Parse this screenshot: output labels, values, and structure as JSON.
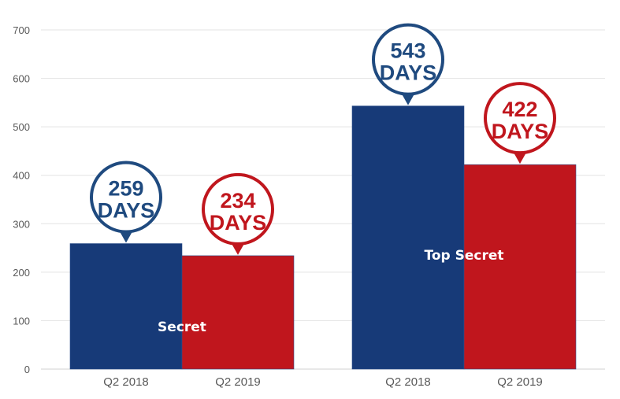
{
  "chart_data": {
    "type": "bar",
    "ylim": [
      0,
      700
    ],
    "yticks": [
      0,
      100,
      200,
      300,
      400,
      500,
      600,
      700
    ],
    "grid": true,
    "groups": [
      {
        "name": "Secret",
        "bars": [
          {
            "category": "Q2 2018",
            "value": 259,
            "color": "#173a78",
            "callout_value": "259",
            "callout_unit": "DAYS",
            "callout_color": "#1f4a7f"
          },
          {
            "category": "Q2 2019",
            "value": 234,
            "color": "#c0161d",
            "callout_value": "234",
            "callout_unit": "DAYS",
            "callout_color": "#c0161d"
          }
        ]
      },
      {
        "name": "Top Secret",
        "bars": [
          {
            "category": "Q2 2018",
            "value": 543,
            "color": "#173a78",
            "callout_value": "543",
            "callout_unit": "DAYS",
            "callout_color": "#1f4a7f"
          },
          {
            "category": "Q2 2019",
            "value": 422,
            "color": "#c0161d",
            "callout_value": "422",
            "callout_unit": "DAYS",
            "callout_color": "#c0161d"
          }
        ]
      }
    ]
  }
}
